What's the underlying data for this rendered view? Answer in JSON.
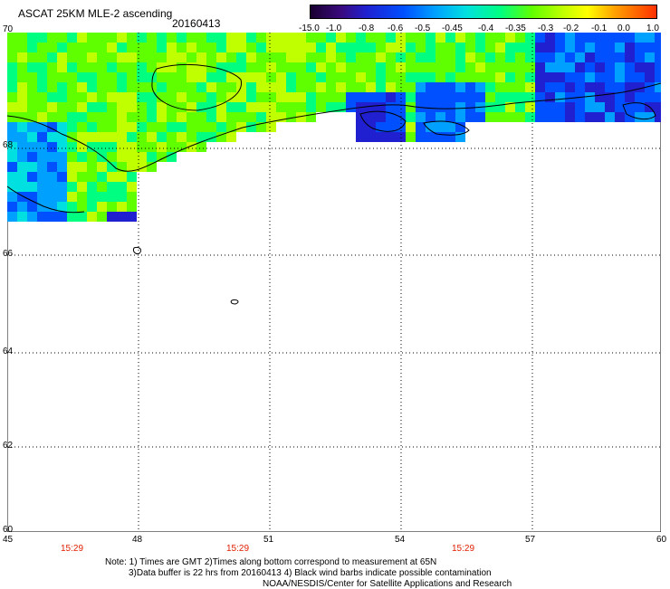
{
  "header": {
    "title": "ASCAT 25KM MLE-2 ascending",
    "date": "20160413"
  },
  "colorbar": {
    "ticks": [
      "-15.0",
      "-1.0",
      "-0.8",
      "-0.6",
      "-0.5",
      "-0.45",
      "-0.4",
      "-0.35",
      "-0.3",
      "-0.2",
      "-0.1",
      "0.0",
      "1.0"
    ],
    "colors": [
      "#1a0030",
      "#3a0a80",
      "#2020d0",
      "#0050ff",
      "#00a0ff",
      "#00e0e0",
      "#00ff80",
      "#60ff00",
      "#c0ff00",
      "#ffff00",
      "#ffa000",
      "#ff3000"
    ]
  },
  "axes": {
    "y_labels": [
      "70",
      "68",
      "66",
      "64",
      "62",
      "60"
    ],
    "x_labels": [
      "45",
      "48",
      "51",
      "54",
      "57",
      "60"
    ]
  },
  "times": [
    "15:29",
    "15:29",
    "15:29"
  ],
  "notes": {
    "line1": "Note: 1) Times are GMT 2)Times along bottom correspond to measurement at 65N",
    "line2": "3)Data buffer is 22 hrs from 20160413 4) Black wind barbs indicate possible contamination",
    "line3": "NOAA/NESDIS/Center for Satellite Applications and Research"
  }
}
